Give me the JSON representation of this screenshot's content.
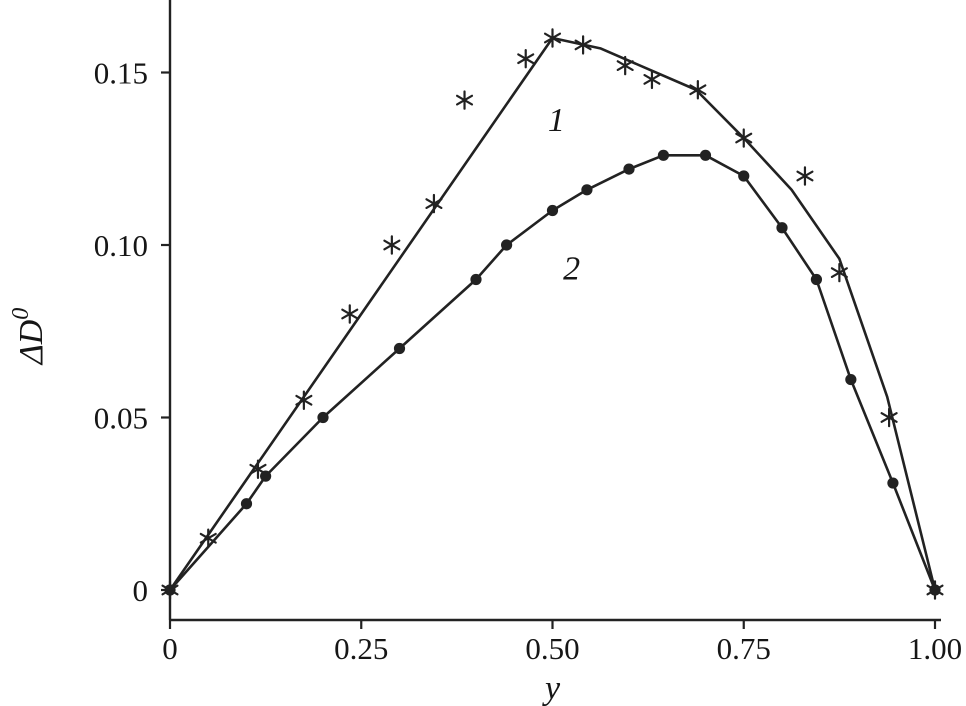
{
  "figure": {
    "background": "#ffffff",
    "ink_color": "#222222"
  },
  "chart_data": {
    "type": "line",
    "title": "",
    "xlabel": "y",
    "ylabel": "ΔD",
    "ylabel_superscript": "0",
    "xlim": [
      0,
      1.0
    ],
    "ylim": [
      0,
      0.175
    ],
    "grid": false,
    "legend": "none",
    "x_ticks": [
      0,
      0.25,
      0.5,
      0.75,
      1.0
    ],
    "x_tick_labels": [
      "0",
      "0.25",
      "0.50",
      "0.75",
      "1.00"
    ],
    "y_ticks": [
      0,
      0.05,
      0.1,
      0.15
    ],
    "y_tick_labels": [
      "0",
      "0.05",
      "0.10",
      "0.15"
    ],
    "annotations": [
      {
        "label": "1",
        "x": 0.505,
        "y": 0.133
      },
      {
        "label": "2",
        "x": 0.525,
        "y": 0.09
      }
    ],
    "series": [
      {
        "name": "1",
        "marker": "asterisk",
        "line_points": [
          [
            0,
            0
          ],
          [
            0.5,
            0.16
          ],
          [
            0.5625,
            0.157
          ],
          [
            0.625,
            0.151
          ],
          [
            0.6875,
            0.145
          ],
          [
            0.75,
            0.131
          ],
          [
            0.8125,
            0.116
          ],
          [
            0.875,
            0.096
          ],
          [
            0.9375,
            0.056
          ],
          [
            1.0,
            0
          ]
        ],
        "marker_points": [
          [
            0,
            0
          ],
          [
            0.05,
            0.015
          ],
          [
            0.115,
            0.035
          ],
          [
            0.175,
            0.055
          ],
          [
            0.235,
            0.08
          ],
          [
            0.29,
            0.1
          ],
          [
            0.345,
            0.112
          ],
          [
            0.385,
            0.142
          ],
          [
            0.465,
            0.154
          ],
          [
            0.5,
            0.16
          ],
          [
            0.54,
            0.158
          ],
          [
            0.595,
            0.152
          ],
          [
            0.63,
            0.148
          ],
          [
            0.69,
            0.145
          ],
          [
            0.75,
            0.131
          ],
          [
            0.83,
            0.12
          ],
          [
            0.875,
            0.092
          ],
          [
            0.94,
            0.05
          ],
          [
            1.0,
            0
          ]
        ]
      },
      {
        "name": "2",
        "marker": "circle",
        "line_points": [
          [
            0,
            0
          ],
          [
            0.1,
            0.025
          ],
          [
            0.125,
            0.033
          ],
          [
            0.2,
            0.05
          ],
          [
            0.3,
            0.07
          ],
          [
            0.4,
            0.09
          ],
          [
            0.44,
            0.1
          ],
          [
            0.5,
            0.11
          ],
          [
            0.545,
            0.116
          ],
          [
            0.6,
            0.122
          ],
          [
            0.645,
            0.126
          ],
          [
            0.7,
            0.126
          ],
          [
            0.75,
            0.12
          ],
          [
            0.8,
            0.105
          ],
          [
            0.845,
            0.09
          ],
          [
            0.89,
            0.061
          ],
          [
            0.945,
            0.031
          ],
          [
            1.0,
            0
          ]
        ],
        "marker_points": [
          [
            0,
            0
          ],
          [
            0.1,
            0.025
          ],
          [
            0.125,
            0.033
          ],
          [
            0.2,
            0.05
          ],
          [
            0.3,
            0.07
          ],
          [
            0.4,
            0.09
          ],
          [
            0.44,
            0.1
          ],
          [
            0.5,
            0.11
          ],
          [
            0.545,
            0.116
          ],
          [
            0.6,
            0.122
          ],
          [
            0.645,
            0.126
          ],
          [
            0.7,
            0.126
          ],
          [
            0.75,
            0.12
          ],
          [
            0.8,
            0.105
          ],
          [
            0.845,
            0.09
          ],
          [
            0.89,
            0.061
          ],
          [
            0.945,
            0.031
          ],
          [
            1.0,
            0
          ]
        ]
      }
    ]
  }
}
